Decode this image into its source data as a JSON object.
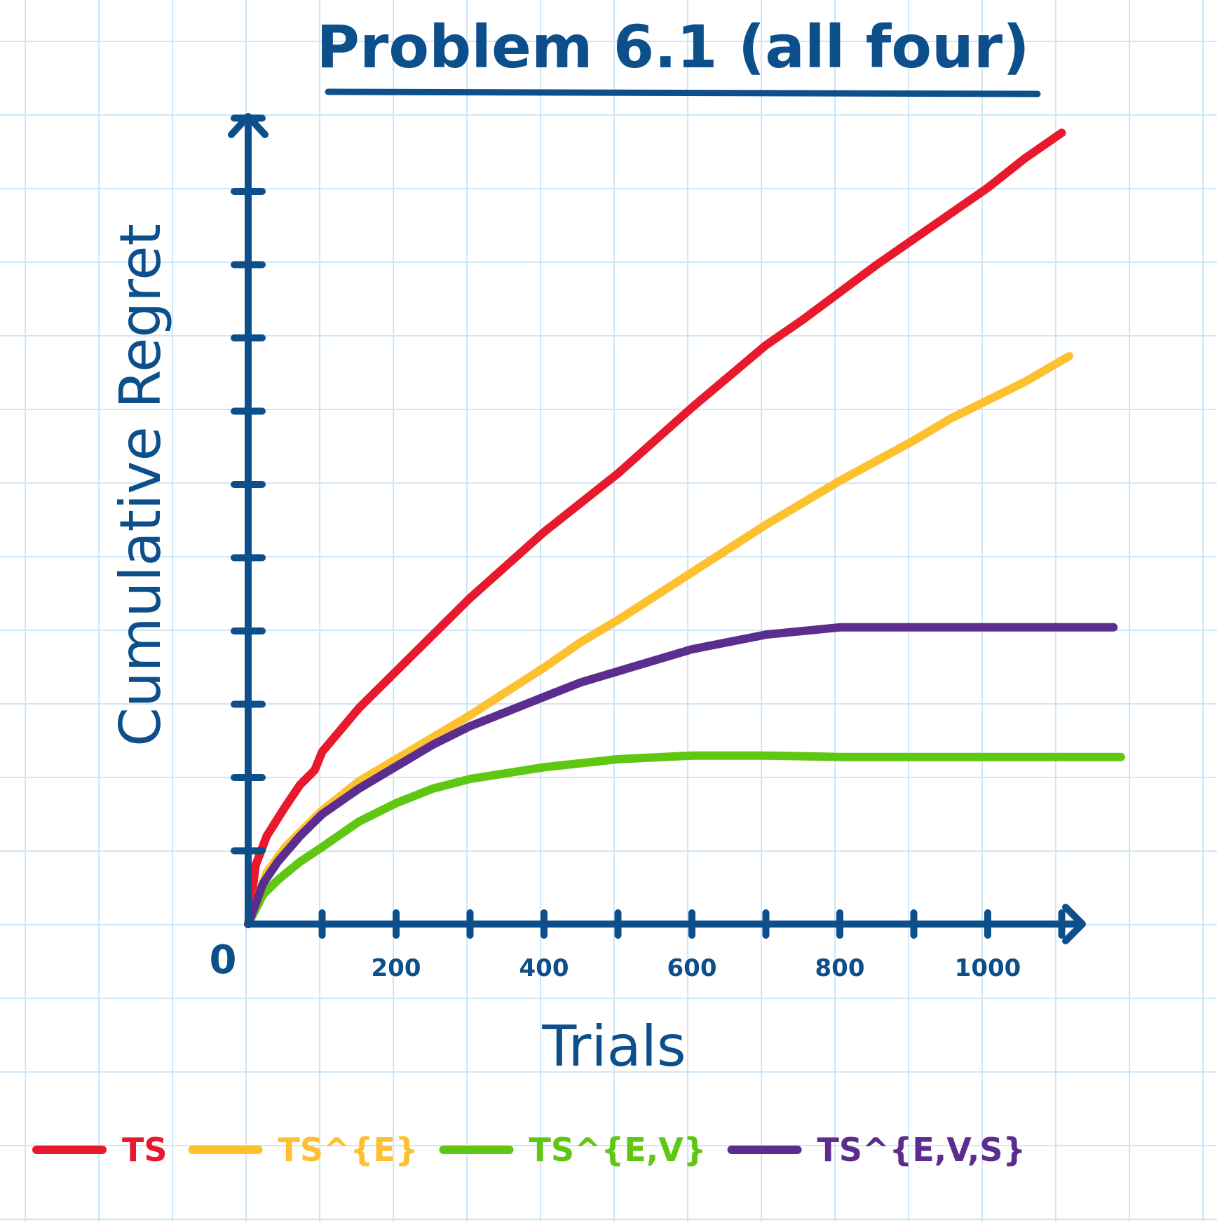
{
  "chart_data": {
    "type": "line",
    "title": "Problem 6.1 (all four)",
    "xlabel": "Trials",
    "ylabel": "Cumulative Regret",
    "x_ticks": [
      {
        "value": 0,
        "label": "0"
      },
      {
        "value": 200,
        "label": "200"
      },
      {
        "value": 400,
        "label": "400"
      },
      {
        "value": 600,
        "label": "600"
      },
      {
        "value": 800,
        "label": "800"
      },
      {
        "value": 1000,
        "label": "1000"
      }
    ],
    "x_tick_marks": [
      100,
      200,
      300,
      400,
      500,
      600,
      700,
      800,
      900,
      1000,
      1100
    ],
    "y_tick_marks": [
      1,
      2,
      3,
      4,
      5,
      6,
      7,
      8,
      9,
      10,
      11
    ],
    "xlim": [
      0,
      1150
    ],
    "ylim": [
      0,
      12
    ],
    "grid": true,
    "legend_position": "bottom",
    "colors": {
      "ink": "#0d4f8b",
      "grid": "#cfe6f7"
    },
    "series": [
      {
        "name": "TS",
        "color": "#e8192c",
        "x": [
          0,
          10,
          25,
          50,
          70,
          90,
          100,
          150,
          200,
          300,
          400,
          450,
          500,
          600,
          700,
          750,
          850,
          950,
          1000,
          1050,
          1100
        ],
        "y": [
          0,
          0.8,
          1.2,
          1.6,
          1.9,
          2.1,
          2.35,
          2.95,
          3.45,
          4.45,
          5.35,
          5.75,
          6.15,
          7.05,
          7.9,
          8.25,
          9.0,
          9.7,
          10.05,
          10.45,
          10.8
        ]
      },
      {
        "name": "TS^{E}",
        "color": "#fdc02f",
        "x": [
          0,
          25,
          50,
          75,
          100,
          150,
          200,
          250,
          300,
          400,
          450,
          500,
          600,
          700,
          750,
          800,
          900,
          950,
          1050,
          1110
        ],
        "y": [
          0,
          0.7,
          1.05,
          1.3,
          1.55,
          1.95,
          2.25,
          2.55,
          2.85,
          3.5,
          3.85,
          4.15,
          4.8,
          5.45,
          5.75,
          6.05,
          6.6,
          6.9,
          7.4,
          7.75
        ]
      },
      {
        "name": "TS^{E,V}",
        "color": "#5fc612",
        "x": [
          0,
          20,
          40,
          70,
          100,
          150,
          200,
          250,
          300,
          400,
          500,
          600,
          700,
          800,
          1000,
          1180
        ],
        "y": [
          0,
          0.4,
          0.6,
          0.85,
          1.05,
          1.4,
          1.65,
          1.85,
          1.98,
          2.14,
          2.25,
          2.3,
          2.3,
          2.28,
          2.28,
          2.28
        ]
      },
      {
        "name": "TS^{E,V,S}",
        "color": "#5a2d8e",
        "x": [
          0,
          20,
          40,
          70,
          100,
          150,
          200,
          250,
          300,
          350,
          400,
          450,
          500,
          550,
          600,
          700,
          800,
          1000,
          1170
        ],
        "y": [
          0,
          0.55,
          0.85,
          1.2,
          1.5,
          1.85,
          2.15,
          2.45,
          2.7,
          2.9,
          3.1,
          3.3,
          3.45,
          3.6,
          3.75,
          3.95,
          4.05,
          4.05,
          4.05
        ]
      }
    ]
  }
}
